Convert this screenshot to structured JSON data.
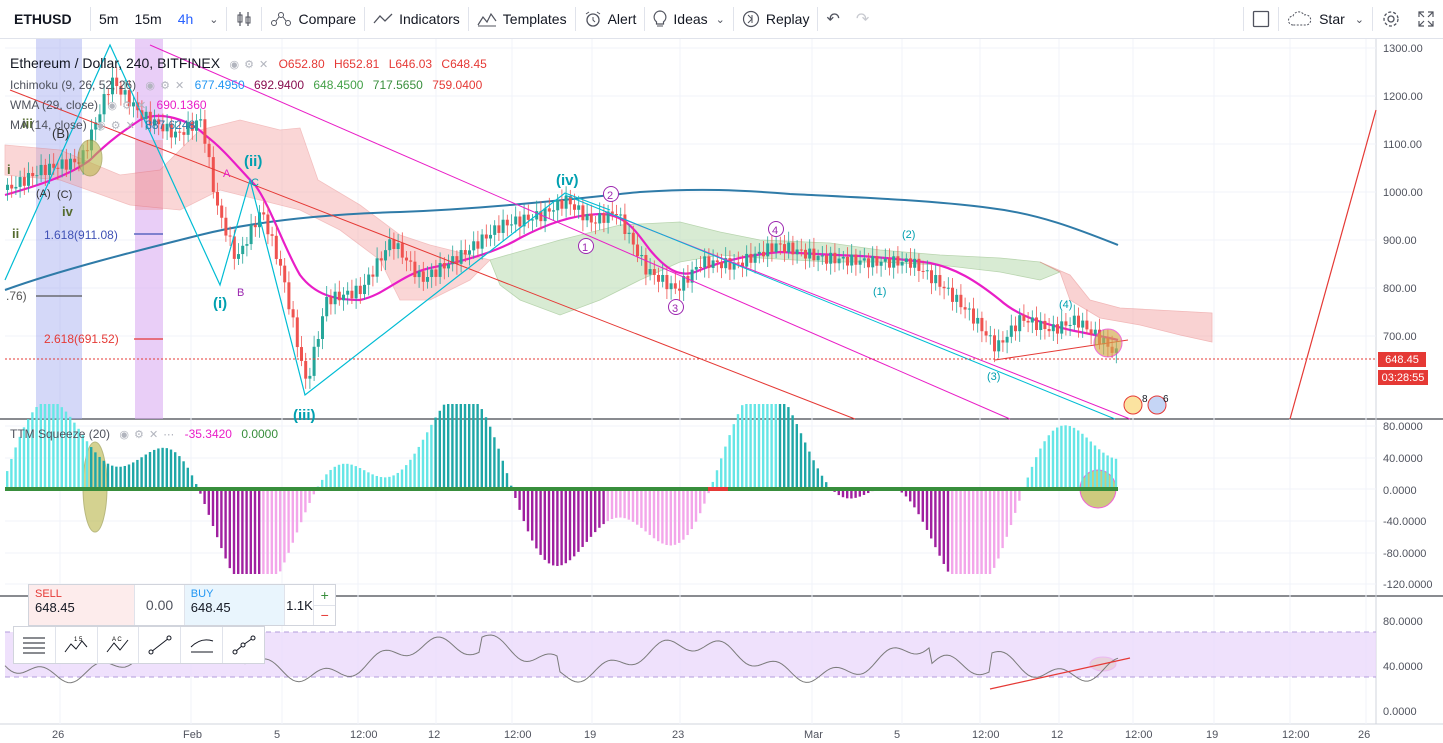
{
  "toolbar": {
    "symbol": "ETHUSD",
    "intervals": [
      "5m",
      "15m",
      "4h"
    ],
    "compare": "Compare",
    "indicators": "Indicators",
    "templates": "Templates",
    "alert": "Alert",
    "ideas": "Ideas",
    "replay": "Replay",
    "star": "Star"
  },
  "legend": {
    "title": "Ethereum / Dollar, 240, BITFINEX",
    "open": "O652.80",
    "high": "H652.81",
    "low": "L646.03",
    "close": "C648.45",
    "ichimoku_label": "Ichimoku (9, 26, 52, 26)",
    "ichimoku_values": [
      "677.4950",
      "692.9400",
      "648.4500",
      "717.5650",
      "759.0400"
    ],
    "wma_label": "WMA (29, close)",
    "wma_value": "690.1360",
    "ma_label": "MA (14, close)",
    "ma_value": "887.6248",
    "ttm_label": "TTM Squeeze (20)",
    "ttm_values": [
      "-35.3420",
      "0.0000"
    ]
  },
  "price_axis": [
    "1300.00",
    "1200.00",
    "1100.00",
    "1000.00",
    "900.00",
    "800.00",
    "700.00"
  ],
  "osc_axis": [
    "80.0000",
    "40.0000",
    "0.0000",
    "-40.0000",
    "-80.0000",
    "-120.0000"
  ],
  "rsi_axis": [
    "80.0000",
    "40.0000",
    "0.0000"
  ],
  "time_axis": [
    "26",
    "Feb",
    "5",
    "12:00",
    "12",
    "12:00",
    "19",
    "23",
    "Mar",
    "5",
    "12:00",
    "12",
    "12:00",
    "19",
    "12:00",
    "26"
  ],
  "price_tags": {
    "last": "648.45",
    "countdown": "03:28:55",
    "last_color": "#e53935",
    "countdown_color": "#e53935"
  },
  "fib_levels": [
    "1.618(911.08)",
    "2.618(691.52)",
    ".76)"
  ],
  "wave_labels": [
    "(iv)",
    "(iii)",
    "(ii)",
    "(i)",
    "iv",
    "ii",
    "i",
    "iii",
    "(B)",
    "(A)",
    "(C)",
    "A",
    "B",
    "C",
    "1",
    "2",
    "3",
    "4",
    "(1)",
    "(2)",
    "(3)",
    "(4)"
  ],
  "trade": {
    "sell_label": "SELL",
    "sell_price": "648.45",
    "spread": "0.00",
    "buy_label": "BUY",
    "buy_price": "648.45",
    "quantity": "1.1K",
    "plus": "+",
    "minus": "−"
  },
  "event_badges": [
    "8",
    "6"
  ],
  "colors": {
    "accent": "#2962ff",
    "up": "#26a69a",
    "down": "#ef5350",
    "wave_pink": "#e91ec7",
    "wave_cyan": "#00bcd4",
    "trend_red": "#e53935",
    "ma_blue": "#2f7ba8"
  }
}
